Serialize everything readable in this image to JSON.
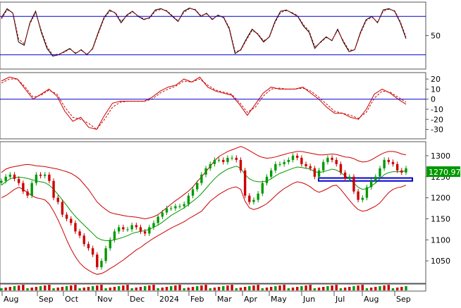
{
  "chart_data": [
    {
      "panel": "stochastic",
      "type": "line",
      "ylim": [
        0,
        100
      ],
      "y_tick_labels": [
        "50"
      ],
      "y_tick_values": [
        50
      ],
      "reference_lines": [
        20,
        80
      ],
      "series": [
        {
          "color": "#000000",
          "style": "solid",
          "values": [
            78,
            92,
            85,
            40,
            35,
            70,
            88,
            55,
            30,
            18,
            20,
            25,
            30,
            22,
            28,
            20,
            30,
            55,
            78,
            90,
            85,
            70,
            82,
            88,
            80,
            75,
            78,
            90,
            92,
            88,
            80,
            72,
            88,
            93,
            90,
            80,
            85,
            75,
            82,
            78,
            60,
            22,
            28,
            45,
            60,
            52,
            40,
            48,
            72,
            88,
            90,
            85,
            80,
            65,
            55,
            30,
            40,
            48,
            42,
            60,
            40,
            25,
            28,
            55,
            75,
            80,
            70,
            90,
            92,
            88,
            70,
            45
          ]
        },
        {
          "color": "#cc0000",
          "style": "dashed",
          "values": [
            76,
            90,
            86,
            45,
            37,
            68,
            86,
            58,
            33,
            20,
            21,
            24,
            29,
            23,
            27,
            21,
            29,
            53,
            76,
            88,
            86,
            72,
            81,
            87,
            81,
            76,
            77,
            88,
            91,
            89,
            81,
            73,
            86,
            92,
            91,
            81,
            84,
            76,
            81,
            79,
            62,
            25,
            27,
            43,
            58,
            53,
            42,
            47,
            70,
            86,
            89,
            86,
            81,
            67,
            57,
            33,
            39,
            47,
            43,
            58,
            42,
            27,
            28,
            53,
            73,
            79,
            71,
            88,
            91,
            89,
            72,
            48
          ]
        }
      ]
    },
    {
      "panel": "oscillator",
      "type": "line",
      "ylim": [
        -38,
        25
      ],
      "y_tick_labels": [
        "20",
        "10",
        "0",
        "-10",
        "-20",
        "-30"
      ],
      "y_tick_values": [
        20,
        10,
        0,
        -10,
        -20,
        -30
      ],
      "reference_lines": [
        0
      ],
      "series": [
        {
          "color": "#cc0000",
          "style": "solid",
          "values": [
            18,
            22,
            20,
            10,
            0,
            5,
            10,
            3,
            -12,
            -22,
            -18,
            -28,
            -30,
            -16,
            -4,
            -2,
            -2,
            -2,
            -2,
            2,
            8,
            12,
            14,
            20,
            17,
            22,
            12,
            8,
            6,
            4,
            -5,
            -16,
            -5,
            6,
            12,
            10,
            10,
            10,
            12,
            6,
            0,
            -8,
            -14,
            -14,
            -18,
            -20,
            -10,
            5,
            10,
            6,
            0,
            -5
          ]
        },
        {
          "color": "#cc0000",
          "style": "dashed",
          "values": [
            16,
            20,
            20,
            12,
            2,
            4,
            9,
            5,
            -8,
            -18,
            -20,
            -24,
            -30,
            -20,
            -8,
            -3,
            -2,
            -2,
            -2,
            0,
            6,
            10,
            13,
            18,
            17,
            20,
            14,
            9,
            7,
            5,
            -3,
            -13,
            -8,
            3,
            10,
            11,
            10,
            10,
            11,
            8,
            2,
            -5,
            -12,
            -14,
            -16,
            -19,
            -13,
            1,
            8,
            7,
            2,
            -3
          ]
        }
      ]
    },
    {
      "panel": "price",
      "type": "candlestick",
      "ylim": [
        1000,
        1330
      ],
      "y_tick_labels": [
        "1300",
        "1250",
        "1200",
        "1150",
        "1100",
        "1050"
      ],
      "y_tick_values": [
        1300,
        1250,
        1200,
        1150,
        1100,
        1050
      ],
      "last_price_label": "1270.970",
      "close": [
        1240,
        1250,
        1255,
        1245,
        1235,
        1215,
        1205,
        1235,
        1255,
        1252,
        1255,
        1240,
        1200,
        1190,
        1160,
        1150,
        1140,
        1120,
        1110,
        1090,
        1080,
        1065,
        1035,
        1050,
        1080,
        1100,
        1120,
        1130,
        1125,
        1125,
        1135,
        1130,
        1120,
        1115,
        1130,
        1140,
        1155,
        1165,
        1175,
        1175,
        1180,
        1180,
        1185,
        1205,
        1220,
        1235,
        1255,
        1270,
        1280,
        1290,
        1290,
        1285,
        1295,
        1295,
        1290,
        1265,
        1205,
        1190,
        1195,
        1210,
        1235,
        1250,
        1265,
        1280,
        1280,
        1285,
        1290,
        1300,
        1295,
        1280,
        1275,
        1270,
        1250,
        1265,
        1285,
        1295,
        1290,
        1280,
        1260,
        1245,
        1250,
        1215,
        1195,
        1200,
        1225,
        1240,
        1250,
        1270,
        1290,
        1285,
        1280,
        1265,
        1260,
        1270
      ],
      "bollinger": {
        "middle": [
          1230,
          1238,
          1245,
          1248,
          1249,
          1248,
          1246,
          1243,
          1240,
          1238,
          1236,
          1230,
          1220,
          1208,
          1195,
          1182,
          1168,
          1156,
          1145,
          1135,
          1125,
          1115,
          1105,
          1100,
          1098,
          1098,
          1100,
          1103,
          1106,
          1110,
          1115,
          1118,
          1120,
          1122,
          1125,
          1130,
          1135,
          1142,
          1150,
          1158,
          1164,
          1170,
          1176,
          1184,
          1192,
          1200,
          1210,
          1222,
          1234,
          1245,
          1255,
          1262,
          1268,
          1272,
          1275,
          1270,
          1255,
          1245,
          1240,
          1238,
          1238,
          1240,
          1245,
          1252,
          1258,
          1262,
          1266,
          1270,
          1273,
          1272,
          1270,
          1268,
          1262,
          1260,
          1262,
          1265,
          1268,
          1266,
          1260,
          1252,
          1245,
          1235,
          1225,
          1220,
          1222,
          1228,
          1235,
          1245,
          1255,
          1260,
          1262,
          1262,
          1262,
          1264
        ],
        "upper": [
          1260,
          1268,
          1272,
          1274,
          1276,
          1278,
          1279,
          1278,
          1276,
          1275,
          1274,
          1272,
          1270,
          1268,
          1265,
          1262,
          1258,
          1252,
          1244,
          1232,
          1220,
          1205,
          1190,
          1180,
          1172,
          1165,
          1162,
          1160,
          1158,
          1156,
          1155,
          1154,
          1152,
          1150,
          1152,
          1155,
          1160,
          1168,
          1176,
          1185,
          1193,
          1200,
          1208,
          1216,
          1226,
          1238,
          1250,
          1262,
          1275,
          1288,
          1298,
          1304,
          1310,
          1314,
          1318,
          1322,
          1318,
          1312,
          1306,
          1300,
          1296,
          1294,
          1295,
          1297,
          1300,
          1303,
          1306,
          1308,
          1310,
          1310,
          1308,
          1306,
          1304,
          1302,
          1302,
          1303,
          1304,
          1303,
          1300,
          1297,
          1296,
          1293,
          1288,
          1285,
          1286,
          1290,
          1296,
          1302,
          1307,
          1310,
          1310,
          1308,
          1304,
          1302
        ],
        "lower": [
          1200,
          1205,
          1212,
          1220,
          1225,
          1220,
          1212,
          1205,
          1200,
          1198,
          1195,
          1185,
          1168,
          1148,
          1125,
          1100,
          1078,
          1060,
          1045,
          1035,
          1028,
          1022,
          1018,
          1020,
          1025,
          1032,
          1038,
          1045,
          1052,
          1060,
          1068,
          1076,
          1082,
          1090,
          1097,
          1104,
          1110,
          1116,
          1122,
          1128,
          1133,
          1138,
          1143,
          1150,
          1156,
          1162,
          1168,
          1180,
          1192,
          1200,
          1208,
          1214,
          1220,
          1224,
          1226,
          1220,
          1192,
          1176,
          1172,
          1175,
          1180,
          1186,
          1195,
          1205,
          1214,
          1222,
          1228,
          1234,
          1238,
          1236,
          1232,
          1226,
          1218,
          1213,
          1217,
          1222,
          1228,
          1230,
          1220,
          1207,
          1194,
          1182,
          1172,
          1168,
          1170,
          1175,
          1180,
          1188,
          1200,
          1212,
          1220,
          1224,
          1226,
          1230
        ]
      }
    }
  ],
  "x_axis": {
    "month_labels": [
      "Aug",
      "Sep",
      "Oct",
      "Nov",
      "Dec",
      "2024",
      "Feb",
      "Mar",
      "Apr",
      "May",
      "Jun",
      "Jul",
      "Aug",
      "Sep"
    ]
  },
  "colors": {
    "reference_line": "#0000cc",
    "indicator": "#cc0000",
    "bb_middle": "#009900",
    "up_candle": "#009900",
    "down_candle": "#cc0000",
    "price_label_bg": "#009900",
    "support_box": "#0000cc"
  }
}
